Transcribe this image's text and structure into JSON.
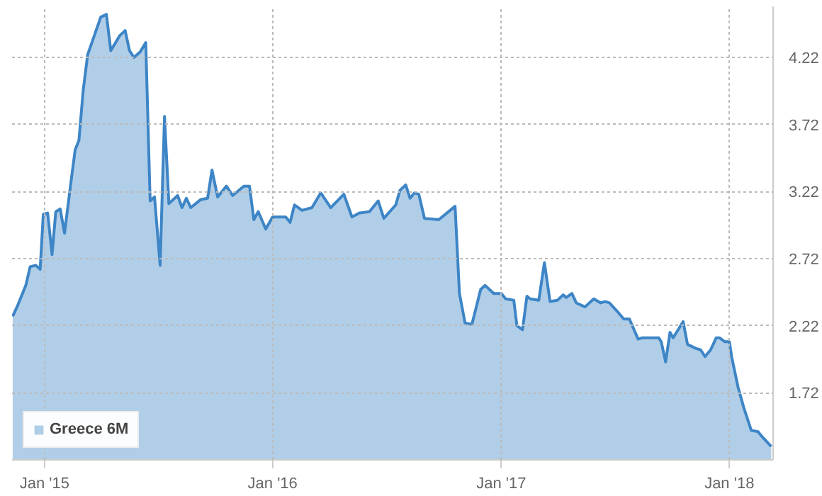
{
  "chart_data": {
    "type": "area",
    "x": [
      "2014-11-11",
      "2014-11-18",
      "2014-12-02",
      "2014-12-09",
      "2014-12-18",
      "2014-12-25",
      "2014-12-30",
      "2015-01-06",
      "2015-01-13",
      "2015-01-19",
      "2015-01-26",
      "2015-02-02",
      "2015-02-12",
      "2015-02-19",
      "2015-02-25",
      "2015-03-04",
      "2015-03-11",
      "2015-03-23",
      "2015-04-01",
      "2015-04-10",
      "2015-04-17",
      "2015-05-01",
      "2015-05-10",
      "2015-05-17",
      "2015-05-24",
      "2015-06-03",
      "2015-06-12",
      "2015-06-19",
      "2015-06-26",
      "2015-07-05",
      "2015-07-12",
      "2015-07-19",
      "2015-08-02",
      "2015-08-09",
      "2015-08-16",
      "2015-08-23",
      "2015-09-08",
      "2015-09-19",
      "2015-09-26",
      "2015-10-05",
      "2015-10-19",
      "2015-10-29",
      "2015-11-16",
      "2015-11-25",
      "2015-12-02",
      "2015-12-09",
      "2015-12-21",
      "2016-01-01",
      "2016-01-08",
      "2016-01-22",
      "2016-01-29",
      "2016-02-05",
      "2016-02-17",
      "2016-03-04",
      "2016-03-18",
      "2016-04-03",
      "2016-04-24",
      "2016-05-07",
      "2016-05-19",
      "2016-06-04",
      "2016-06-18",
      "2016-06-27",
      "2016-07-16",
      "2016-07-23",
      "2016-08-01",
      "2016-08-08",
      "2016-08-15",
      "2016-08-22",
      "2016-08-31",
      "2016-09-23",
      "2016-10-19",
      "2016-10-26",
      "2016-11-04",
      "2016-11-15",
      "2016-11-29",
      "2016-12-06",
      "2016-12-20",
      "2017-01-01",
      "2017-01-08",
      "2017-01-21",
      "2017-01-26",
      "2017-02-04",
      "2017-02-11",
      "2017-02-16",
      "2017-03-02",
      "2017-03-11",
      "2017-03-20",
      "2017-04-01",
      "2017-04-10",
      "2017-04-15",
      "2017-04-24",
      "2017-05-01",
      "2017-05-15",
      "2017-05-29",
      "2017-06-09",
      "2017-06-16",
      "2017-06-23",
      "2017-07-05",
      "2017-07-16",
      "2017-07-25",
      "2017-08-08",
      "2017-08-15",
      "2017-09-10",
      "2017-09-14",
      "2017-09-21",
      "2017-09-28",
      "2017-10-03",
      "2017-10-19",
      "2017-10-26",
      "2017-11-09",
      "2017-11-16",
      "2017-11-23",
      "2017-12-02",
      "2017-12-11",
      "2017-12-16",
      "2017-12-25",
      "2018-01-01",
      "2018-01-05",
      "2018-01-15",
      "2018-01-24",
      "2018-02-05",
      "2018-02-16",
      "2018-02-21",
      "2018-03-09"
    ],
    "series": [
      {
        "name": "Greece 6M",
        "color": "#3d85c6",
        "values": [
          2.29,
          2.36,
          2.52,
          2.66,
          2.67,
          2.64,
          3.05,
          3.06,
          2.75,
          3.07,
          3.09,
          2.91,
          3.28,
          3.53,
          3.6,
          3.98,
          4.24,
          4.4,
          4.52,
          4.54,
          4.27,
          4.38,
          4.42,
          4.27,
          4.22,
          4.26,
          4.33,
          3.15,
          3.18,
          2.67,
          3.78,
          3.13,
          3.19,
          3.1,
          3.17,
          3.1,
          3.16,
          3.17,
          3.38,
          3.18,
          3.26,
          3.19,
          3.26,
          3.26,
          3.01,
          3.07,
          2.94,
          3.03,
          3.03,
          3.03,
          2.99,
          3.12,
          3.08,
          3.1,
          3.21,
          3.1,
          3.2,
          3.03,
          3.06,
          3.07,
          3.15,
          3.02,
          3.12,
          3.23,
          3.27,
          3.17,
          3.21,
          3.2,
          3.02,
          3.01,
          3.11,
          2.46,
          2.24,
          2.23,
          2.49,
          2.52,
          2.46,
          2.46,
          2.42,
          2.41,
          2.22,
          2.19,
          2.44,
          2.42,
          2.41,
          2.69,
          2.4,
          2.41,
          2.45,
          2.43,
          2.46,
          2.39,
          2.36,
          2.42,
          2.39,
          2.4,
          2.39,
          2.33,
          2.27,
          2.27,
          2.12,
          2.13,
          2.13,
          2.1,
          1.95,
          2.17,
          2.13,
          2.25,
          2.08,
          2.05,
          2.04,
          1.99,
          2.04,
          2.13,
          2.13,
          2.1,
          2.1,
          1.98,
          1.76,
          1.61,
          1.44,
          1.43,
          1.4,
          1.32
        ]
      }
    ],
    "xlim": [
      "2014-11-10",
      "2018-03-12"
    ],
    "xticks": [
      {
        "value": "2015-01-01",
        "label": "Jan '15"
      },
      {
        "value": "2016-01-01",
        "label": "Jan '16"
      },
      {
        "value": "2017-01-01",
        "label": "Jan '17"
      },
      {
        "value": "2018-01-01",
        "label": "Jan '18"
      }
    ],
    "ylim": [
      1.22,
      4.6
    ],
    "yticks": [
      1.72,
      2.22,
      2.72,
      3.22,
      3.72,
      4.22
    ],
    "grid": true,
    "legend": "bottom left",
    "marker": "none",
    "line_style": "solid"
  }
}
